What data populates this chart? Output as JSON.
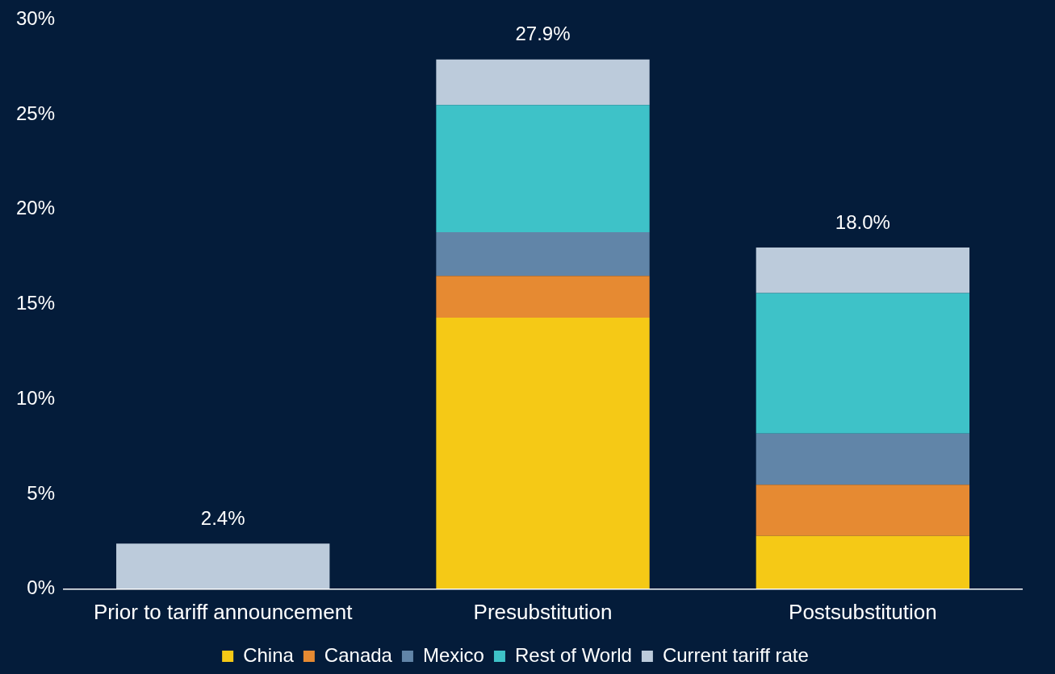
{
  "chart_data": {
    "type": "bar",
    "stacked": true,
    "categories": [
      "Prior to tariff announcement",
      "Presubstitution",
      "Postsubstitution"
    ],
    "series": [
      {
        "name": "China",
        "color": "#f5c916",
        "values": [
          null,
          14.3,
          2.8
        ]
      },
      {
        "name": "Canada",
        "color": "#e68a32",
        "values": [
          null,
          2.2,
          2.7
        ]
      },
      {
        "name": "Mexico",
        "color": "#6185a8",
        "values": [
          null,
          2.3,
          2.7
        ]
      },
      {
        "name": "Rest of World",
        "color": "#3ec2c8",
        "values": [
          null,
          6.7,
          7.4
        ]
      },
      {
        "name": "Current tariff rate",
        "color": "#bccbdb",
        "values": [
          2.4,
          2.4,
          2.4
        ]
      }
    ],
    "totals": [
      "2.4%",
      "27.9%",
      "18.0%"
    ],
    "ylim": [
      0,
      30
    ],
    "yticks": [
      {
        "value": 0,
        "label": "0%"
      },
      {
        "value": 5,
        "label": "5%"
      },
      {
        "value": 10,
        "label": "10%"
      },
      {
        "value": 15,
        "label": "15%"
      },
      {
        "value": 20,
        "label": "20%"
      },
      {
        "value": 25,
        "label": "25%"
      },
      {
        "value": 30,
        "label": "30%"
      }
    ],
    "grid": false,
    "legend": "bottom"
  }
}
